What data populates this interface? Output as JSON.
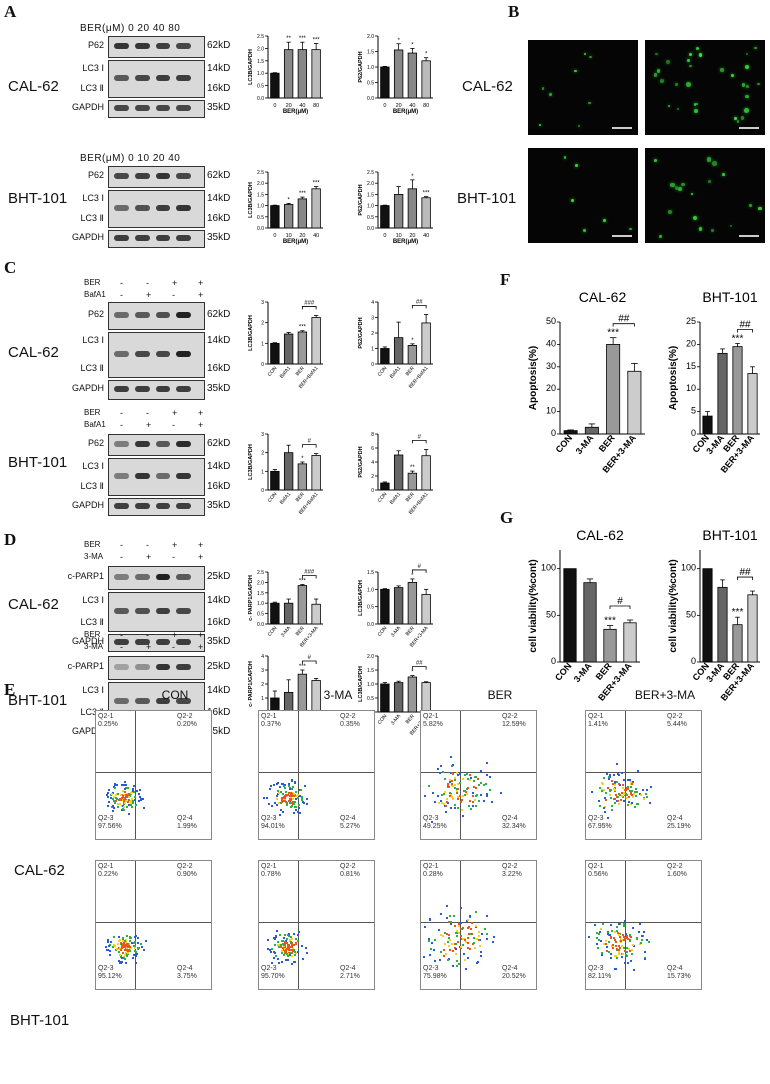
{
  "panels": {
    "A": "A",
    "B": "B",
    "C": "C",
    "D": "D",
    "E": "E",
    "F": "F",
    "G": "G"
  },
  "cells": {
    "cal": "CAL-62",
    "bht": "BHT-101"
  },
  "A": {
    "cal_head": "BER(μM)  0    20    40    80",
    "bht_head": "BER(μM)  0    10    20    40",
    "proteins": [
      "P62",
      "LC3 Ⅰ",
      "LC3 Ⅱ",
      "GAPDH"
    ],
    "kd": [
      "62kD",
      "14kD",
      "16kD",
      "35kD"
    ]
  },
  "C": {
    "rowsTop": [
      [
        "BER",
        "-",
        "-",
        "+",
        "+"
      ],
      [
        "BafA1",
        "-",
        "+",
        "-",
        "+"
      ]
    ],
    "proteins": [
      "P62",
      "LC3 Ⅰ",
      "LC3 Ⅱ",
      "GAPDH"
    ],
    "kd": [
      "62kD",
      "14kD",
      "16kD",
      "35kD"
    ]
  },
  "D": {
    "rowsTop": [
      [
        "BER",
        "-",
        "-",
        "+",
        "+"
      ],
      [
        "3-MA",
        "-",
        "+",
        "-",
        "+"
      ]
    ],
    "proteins": [
      "c-PARP1",
      "LC3 Ⅰ",
      "LC3 Ⅱ",
      "GAPDH"
    ],
    "kd": [
      "25kD",
      "14kD",
      "16kD",
      "35kD"
    ]
  },
  "chart_data": [
    {
      "id": "A1",
      "type": "bar",
      "categories": [
        "0",
        "20",
        "40",
        "80"
      ],
      "values": [
        1.0,
        1.95,
        1.95,
        1.95
      ],
      "errors": [
        0.02,
        0.3,
        0.3,
        0.25
      ],
      "sig": [
        "",
        "**",
        "***",
        "***"
      ],
      "ylabel": "LC3B/GAPDH",
      "xlabel": "BER(μM)",
      "ylim": [
        0,
        2.5
      ],
      "yticks": [
        "0.0",
        "0.5",
        "1.0",
        "1.5",
        "2.0",
        "2.5"
      ]
    },
    {
      "id": "A2",
      "type": "bar",
      "categories": [
        "0",
        "20",
        "40",
        "80"
      ],
      "values": [
        1.0,
        1.55,
        1.45,
        1.2
      ],
      "errors": [
        0.02,
        0.2,
        0.15,
        0.1
      ],
      "sig": [
        "",
        "*",
        "*",
        "*"
      ],
      "ylabel": "P62/GAPDH",
      "xlabel": "BER(μM)",
      "ylim": [
        0,
        2.0
      ],
      "yticks": [
        "0.0",
        "0.5",
        "1.0",
        "1.5",
        "2.0"
      ]
    },
    {
      "id": "A3",
      "type": "bar",
      "categories": [
        "0",
        "10",
        "20",
        "40"
      ],
      "values": [
        1.0,
        1.05,
        1.3,
        1.75
      ],
      "errors": [
        0.02,
        0.05,
        0.08,
        0.1
      ],
      "sig": [
        "",
        "*",
        "***",
        "***"
      ],
      "ylabel": "LC3B/GAPDH",
      "xlabel": "BER(μM)",
      "ylim": [
        0,
        2.5
      ],
      "yticks": [
        "0.0",
        "0.5",
        "1.0",
        "1.5",
        "2.0",
        "2.5"
      ]
    },
    {
      "id": "A4",
      "type": "bar",
      "categories": [
        "0",
        "10",
        "20",
        "40"
      ],
      "values": [
        1.0,
        1.5,
        1.75,
        1.35
      ],
      "errors": [
        0.02,
        0.35,
        0.4,
        0.05
      ],
      "sig": [
        "",
        "",
        "*",
        "***"
      ],
      "ylabel": "P62/GAPDH",
      "xlabel": "BER(μM)",
      "ylim": [
        0,
        2.5
      ],
      "yticks": [
        "0.0",
        "0.5",
        "1.0",
        "1.5",
        "2.0",
        "2.5"
      ]
    },
    {
      "id": "C1",
      "type": "bar",
      "categories": [
        "CON",
        "BafA1",
        "BER",
        "BER+BafA1"
      ],
      "values": [
        1.0,
        1.45,
        1.55,
        2.25
      ],
      "errors": [
        0.03,
        0.08,
        0.06,
        0.1
      ],
      "sig": [
        "",
        "",
        "***",
        ""
      ],
      "bracket": "###",
      "ylabel": "LC3B/GAPDH",
      "ylim": [
        0,
        3
      ],
      "yticks": [
        "0",
        "1",
        "2",
        "3"
      ]
    },
    {
      "id": "C2",
      "type": "bar",
      "categories": [
        "CON",
        "BafA1",
        "BER",
        "BER+BafA1"
      ],
      "values": [
        1.0,
        1.7,
        1.2,
        2.65
      ],
      "errors": [
        0.1,
        1.0,
        0.1,
        0.55
      ],
      "sig": [
        "",
        "",
        "*",
        ""
      ],
      "bracket": "##",
      "ylabel": "P62/GAPDH",
      "ylim": [
        0,
        4
      ],
      "yticks": [
        "0",
        "1",
        "2",
        "3",
        "4"
      ]
    },
    {
      "id": "C3",
      "type": "bar",
      "categories": [
        "CON",
        "BafA1",
        "BER",
        "BER+BafA1"
      ],
      "values": [
        1.0,
        2.0,
        1.4,
        1.85
      ],
      "errors": [
        0.1,
        0.4,
        0.1,
        0.1
      ],
      "sig": [
        "",
        "",
        "*",
        ""
      ],
      "bracket": "#",
      "ylabel": "LC3B/GAPDH",
      "ylim": [
        0,
        3
      ],
      "yticks": [
        "0",
        "1",
        "2",
        "3"
      ]
    },
    {
      "id": "C4",
      "type": "bar",
      "categories": [
        "CON",
        "BafA1",
        "BER",
        "BER+BafA1"
      ],
      "values": [
        1.0,
        5.0,
        2.4,
        4.9
      ],
      "errors": [
        0.15,
        0.6,
        0.3,
        0.9
      ],
      "sig": [
        "",
        "",
        "**",
        ""
      ],
      "bracket": "#",
      "ylabel": "P62/GAPDH",
      "ylim": [
        0,
        8
      ],
      "yticks": [
        "0",
        "2",
        "4",
        "6",
        "8"
      ]
    },
    {
      "id": "D1",
      "type": "bar",
      "categories": [
        "CON",
        "3-MA",
        "BER",
        "BER+3-MA"
      ],
      "values": [
        1.0,
        1.0,
        1.85,
        0.95
      ],
      "errors": [
        0.05,
        0.2,
        0.05,
        0.25
      ],
      "sig": [
        "",
        "",
        "***",
        ""
      ],
      "bracket": "###",
      "ylabel": "c- PARP1/GAPDH",
      "ylim": [
        0,
        2.5
      ],
      "yticks": [
        "0.0",
        "0.5",
        "1.0",
        "1.5",
        "2.0",
        "2.5"
      ]
    },
    {
      "id": "D2",
      "type": "bar",
      "categories": [
        "CON",
        "3-MA",
        "BER",
        "BER+3-MA"
      ],
      "values": [
        1.0,
        1.05,
        1.2,
        0.85
      ],
      "errors": [
        0.02,
        0.05,
        0.1,
        0.15
      ],
      "sig": [
        "",
        "",
        "*",
        ""
      ],
      "bracket": "#",
      "ylabel": "LC3B/GAPDH",
      "ylim": [
        0,
        1.5
      ],
      "yticks": [
        "0.0",
        "0.5",
        "1.0",
        "1.5"
      ]
    },
    {
      "id": "D3",
      "type": "bar",
      "categories": [
        "control",
        "3-MA",
        "BER",
        "BER+3-MA"
      ],
      "values": [
        1.0,
        1.4,
        2.7,
        2.25
      ],
      "errors": [
        0.5,
        0.9,
        0.3,
        0.15
      ],
      "sig": [
        "",
        "",
        "***",
        ""
      ],
      "bracket": "#",
      "ylabel": "c- PARP1/GAPDH",
      "ylim": [
        0,
        4
      ],
      "yticks": [
        "0",
        "1",
        "2",
        "3",
        "4"
      ]
    },
    {
      "id": "D4",
      "type": "bar",
      "categories": [
        "CON",
        "3-MA",
        "BER",
        "BER+3-MA"
      ],
      "values": [
        1.0,
        1.05,
        1.25,
        1.05
      ],
      "errors": [
        0.05,
        0.05,
        0.05,
        0.03
      ],
      "sig": [
        "",
        "",
        "*",
        ""
      ],
      "bracket": "##",
      "ylabel": "LC3B/GAPDH",
      "ylim": [
        0,
        2.0
      ],
      "yticks": [
        "0.0",
        "0.5",
        "1.0",
        "1.5",
        "2.0"
      ]
    },
    {
      "id": "F1",
      "type": "bar",
      "title": "CAL-62",
      "categories": [
        "CON",
        "3-MA",
        "BER",
        "BER+3-MA"
      ],
      "values": [
        1.5,
        3.0,
        40.0,
        28.0
      ],
      "errors": [
        0.3,
        1.5,
        3.0,
        3.5
      ],
      "sig": [
        "",
        "",
        "***",
        ""
      ],
      "bracket": "##",
      "ylabel": "Apoptosis(%)",
      "ylim": [
        0,
        50
      ],
      "yticks": [
        "0",
        "10",
        "20",
        "30",
        "40",
        "50"
      ]
    },
    {
      "id": "F2",
      "type": "bar",
      "title": "BHT-101",
      "categories": [
        "CON",
        "3-MA",
        "BER",
        "BER+3-MA"
      ],
      "values": [
        4.0,
        18.0,
        19.5,
        13.5
      ],
      "errors": [
        1.0,
        1.0,
        0.7,
        1.5
      ],
      "sig": [
        "",
        "",
        "***",
        ""
      ],
      "bracket": "##",
      "ylabel": "Apoptosis(%)",
      "ylim": [
        0,
        25
      ],
      "yticks": [
        "0",
        "5",
        "10",
        "15",
        "20",
        "25"
      ]
    },
    {
      "id": "G1",
      "type": "bar",
      "title": "CAL-62",
      "categories": [
        "CON",
        "3-MA",
        "BER",
        "BER+3-MA"
      ],
      "values": [
        100,
        85,
        35,
        42
      ],
      "errors": [
        0,
        4,
        4,
        3
      ],
      "sig": [
        "",
        "",
        "***",
        ""
      ],
      "bracket": "#",
      "ylabel": "cell viability(%cont)",
      "ylim": [
        0,
        120
      ],
      "yticks": [
        "0",
        "50",
        "100"
      ]
    },
    {
      "id": "G2",
      "type": "bar",
      "title": "BHT-101",
      "categories": [
        "CON",
        "3-MA",
        "BER",
        "BER+3-MA"
      ],
      "values": [
        100,
        80,
        40,
        72
      ],
      "errors": [
        0,
        8,
        8,
        4
      ],
      "sig": [
        "",
        "",
        "***",
        ""
      ],
      "bracket": "##",
      "ylabel": "cell viability(%cont)",
      "ylim": [
        0,
        120
      ],
      "yticks": [
        "0",
        "50",
        "100"
      ]
    }
  ],
  "E": {
    "conditions": [
      "CON",
      "3-MA",
      "BER",
      "BER+3-MA"
    ],
    "cal": [
      [
        "Q2-1\n0.25%",
        "Q2-2\n0.20%",
        "Q2-3\n97.56%",
        "Q2-4\n1.99%"
      ],
      [
        "Q2-1\n0.37%",
        "Q2-2\n0.35%",
        "Q2-3\n94.01%",
        "Q2-4\n5.27%"
      ],
      [
        "Q2-1\n5.82%",
        "Q2-2\n12.59%",
        "Q2-3\n49.25%",
        "Q2-4\n32.34%"
      ],
      [
        "Q2-1\n1.41%",
        "Q2-2\n5.44%",
        "Q2-3\n67.95%",
        "Q2-4\n25.19%"
      ]
    ],
    "bht": [
      [
        "Q2-1\n0.22%",
        "Q2-2\n0.90%",
        "Q2-3\n95.12%",
        "Q2-4\n3.75%"
      ],
      [
        "Q2-1\n0.78%",
        "Q2-2\n0.81%",
        "Q2-3\n95.70%",
        "Q2-4\n2.71%"
      ],
      [
        "Q2-1\n0.28%",
        "Q2-2\n3.22%",
        "Q2-3\n75.98%",
        "Q2-4\n20.52%"
      ],
      [
        "Q2-1\n0.56%",
        "Q2-2\n1.60%",
        "Q2-3\n82.11%",
        "Q2-4\n15.73%"
      ]
    ]
  }
}
